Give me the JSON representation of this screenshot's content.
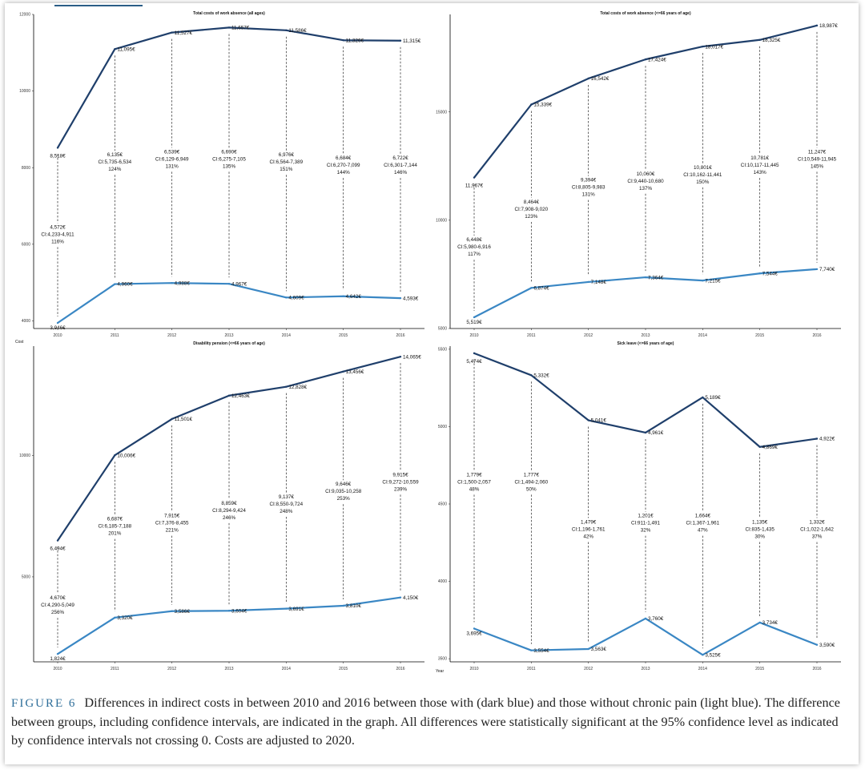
{
  "caption": {
    "label": "FIGURE 6",
    "text": "Differences in indirect costs in between 2010 and 2016 between those with (dark blue) and those without chronic pain (light blue). The difference between groups, including confidence intervals, are indicated in the graph. All differences were statistically significant at the 95% confidence level as indicated by confidence intervals not crossing 0. Costs are adjusted to 2020."
  },
  "axis_labels": {
    "y": "Cost",
    "x": "Year"
  },
  "colors": {
    "dark": "#1f3f6b",
    "light": "#3a87c4"
  },
  "chart_data": [
    {
      "type": "line",
      "title": "Total costs of work absence (all ages)",
      "categories": [
        "2010",
        "2011",
        "2012",
        "2013",
        "2014",
        "2015",
        "2016"
      ],
      "ylim": [
        3800,
        12000
      ],
      "yticks": [
        4000,
        6000,
        8000,
        10000,
        12000
      ],
      "series": [
        {
          "name": "With chronic pain",
          "values": [
            8518,
            11095,
            11527,
            11657,
            11586,
            11326,
            11315
          ],
          "labels": [
            "8,518€",
            "11,095€",
            "11,527€",
            "11,657€",
            "11,586€",
            "11,326€",
            "11,315€"
          ]
        },
        {
          "name": "Without chronic pain",
          "values": [
            3946,
            4960,
            4988,
            4967,
            4609,
            4642,
            4593
          ],
          "labels": [
            "3,946€",
            "4,960€",
            "4,988€",
            "4,967€",
            "4,609€",
            "4,642€",
            "4,593€"
          ]
        }
      ],
      "differences": [
        {
          "value": "4,572€",
          "ci": "CI:4,233-4,911",
          "pct": "116%"
        },
        {
          "value": "6,135€",
          "ci": "CI:5,735-6,534",
          "pct": "124%"
        },
        {
          "value": "6,539€",
          "ci": "CI:6,129-6,949",
          "pct": "131%"
        },
        {
          "value": "6,690€",
          "ci": "CI:6,275-7,105",
          "pct": "135%"
        },
        {
          "value": "6,976€",
          "ci": "CI:6,564-7,389",
          "pct": "151%"
        },
        {
          "value": "6,684€",
          "ci": "CI:6,270-7,099",
          "pct": "144%"
        },
        {
          "value": "6,722€",
          "ci": "CI:6,301-7,144",
          "pct": "146%"
        }
      ]
    },
    {
      "type": "line",
      "title": "Total costs of work absence (<=66 years of age)",
      "categories": [
        "2010",
        "2011",
        "2012",
        "2013",
        "2014",
        "2015",
        "2016"
      ],
      "ylim": [
        5000,
        19500
      ],
      "yticks": [
        5000,
        10000,
        15000
      ],
      "series": [
        {
          "name": "With chronic pain",
          "values": [
            11967,
            15339,
            16542,
            17424,
            18017,
            18325,
            18987
          ],
          "labels": [
            "11,967€",
            "15,339€",
            "16,542€",
            "17,424€",
            "18,017€",
            "18,325€",
            "18,987€"
          ]
        },
        {
          "name": "Without chronic pain",
          "values": [
            5519,
            6874,
            7148,
            7364,
            7215,
            7544,
            7740
          ],
          "labels": [
            "5,519€",
            "6,874€",
            "7,148€",
            "7,364€",
            "7,215€",
            "7,544€",
            "7,740€"
          ]
        }
      ],
      "differences": [
        {
          "value": "6,448€",
          "ci": "CI:5,980-6,916",
          "pct": "117%"
        },
        {
          "value": "8,464€",
          "ci": "CI:7,908-9,020",
          "pct": "123%"
        },
        {
          "value": "9,394€",
          "ci": "CI:8,805-9,983",
          "pct": "131%"
        },
        {
          "value": "10,060€",
          "ci": "CI:9,440-10,680",
          "pct": "137%"
        },
        {
          "value": "10,801€",
          "ci": "CI:10,162-11,441",
          "pct": "150%"
        },
        {
          "value": "10,781€",
          "ci": "CI:10,117-11,445",
          "pct": "143%"
        },
        {
          "value": "11,247€",
          "ci": "CI:10,549-11,945",
          "pct": "145%"
        }
      ]
    },
    {
      "type": "line",
      "title": "Disability pension (<=66 years of age)",
      "categories": [
        "2010",
        "2011",
        "2012",
        "2013",
        "2014",
        "2015",
        "2016"
      ],
      "ylim": [
        1500,
        14500
      ],
      "yticks": [
        5000,
        10000
      ],
      "series": [
        {
          "name": "With chronic pain",
          "values": [
            6494,
            10006,
            11501,
            12463,
            12828,
            13456,
            14065
          ],
          "labels": [
            "6,494€",
            "10,006€",
            "11,501€",
            "12,463€",
            "12,828€",
            "13,456€",
            "14,065€"
          ]
        },
        {
          "name": "Without chronic pain",
          "values": [
            1824,
            3320,
            3586,
            3604,
            3691,
            3810,
            4150
          ],
          "labels": [
            "1,824€",
            "3,320€",
            "3,586€",
            "3,604€",
            "3,691€",
            "3,810€",
            "4,150€"
          ]
        }
      ],
      "differences": [
        {
          "value": "4,670€",
          "ci": "CI:4,290-5,049",
          "pct": "256%"
        },
        {
          "value": "6,687€",
          "ci": "CI:6,185-7,188",
          "pct": "201%"
        },
        {
          "value": "7,915€",
          "ci": "CI:7,376-8,455",
          "pct": "221%"
        },
        {
          "value": "8,859€",
          "ci": "CI:8,294-9,424",
          "pct": "246%"
        },
        {
          "value": "9,137€",
          "ci": "CI:8,550-9,724",
          "pct": "248%"
        },
        {
          "value": "9,646€",
          "ci": "CI:9,035-10,258",
          "pct": "253%"
        },
        {
          "value": "9,915€",
          "ci": "CI:9,272-10,559",
          "pct": "239%"
        }
      ]
    },
    {
      "type": "line",
      "title": "Sick leave (<=66 years of age)",
      "categories": [
        "2010",
        "2011",
        "2012",
        "2013",
        "2014",
        "2015",
        "2016"
      ],
      "ylim": [
        3480,
        5520
      ],
      "yticks": [
        3500,
        4000,
        4500,
        5000,
        5500
      ],
      "series": [
        {
          "name": "With chronic pain",
          "values": [
            5474,
            5332,
            5041,
            4961,
            5189,
            4869,
            4922
          ],
          "labels": [
            "5,474€",
            "5,332€",
            "5,041€",
            "4,961€",
            "5,189€",
            "4,869€",
            "4,922€"
          ]
        },
        {
          "name": "Without chronic pain",
          "values": [
            3695,
            3554,
            3563,
            3760,
            3525,
            3734,
            3590
          ],
          "labels": [
            "3,695€",
            "3,554€",
            "3,563€",
            "3,760€",
            "3,525€",
            "3,734€",
            "3,590€"
          ]
        }
      ],
      "differences": [
        {
          "value": "1,779€",
          "ci": "CI:1,500-2,057",
          "pct": "48%"
        },
        {
          "value": "1,777€",
          "ci": "CI:1,494-2,060",
          "pct": "50%"
        },
        {
          "value": "1,479€",
          "ci": "CI:1,196-1,761",
          "pct": "42%"
        },
        {
          "value": "1,201€",
          "ci": "CI:911-1,491",
          "pct": "32%"
        },
        {
          "value": "1,664€",
          "ci": "CI:1,367-1,961",
          "pct": "47%"
        },
        {
          "value": "1,135€",
          "ci": "CI:835-1,435",
          "pct": "30%"
        },
        {
          "value": "1,332€",
          "ci": "CI:1,022-1,642",
          "pct": "37%"
        }
      ]
    }
  ]
}
